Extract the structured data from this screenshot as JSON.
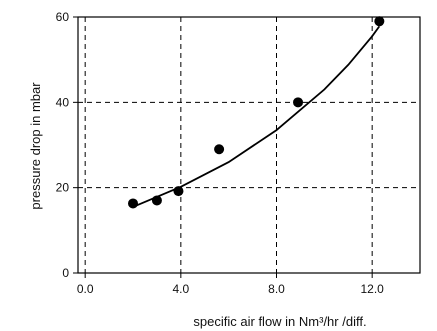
{
  "chart_data": {
    "type": "scatter",
    "title": "",
    "xlabel": "specific air flow in Nm³/hr /diff.",
    "ylabel": "pressure drop in mbar",
    "xlim": [
      -0.3,
      14.0
    ],
    "ylim": [
      0,
      60
    ],
    "x_ticks": [
      0.0,
      4.0,
      8.0,
      12.0
    ],
    "x_tick_labels": [
      "0.0",
      "4.0",
      "8.0",
      "12.0"
    ],
    "y_ticks": [
      0,
      20,
      40,
      60
    ],
    "y_tick_labels": [
      "0",
      "20",
      "40",
      "60"
    ],
    "grid": "dashed",
    "series": [
      {
        "type": "scatter",
        "x": [
          2.0,
          3.0,
          3.9,
          5.6,
          8.9,
          12.3
        ],
        "y": [
          16.3,
          17.0,
          19.2,
          29.0,
          40.0,
          59.0
        ]
      },
      {
        "type": "line",
        "x": [
          2.0,
          4.0,
          6.0,
          8.0,
          10.0,
          11.0,
          12.0,
          12.3
        ],
        "y": [
          15.5,
          20.2,
          26.0,
          33.5,
          43.0,
          48.8,
          55.5,
          57.8
        ]
      }
    ]
  }
}
